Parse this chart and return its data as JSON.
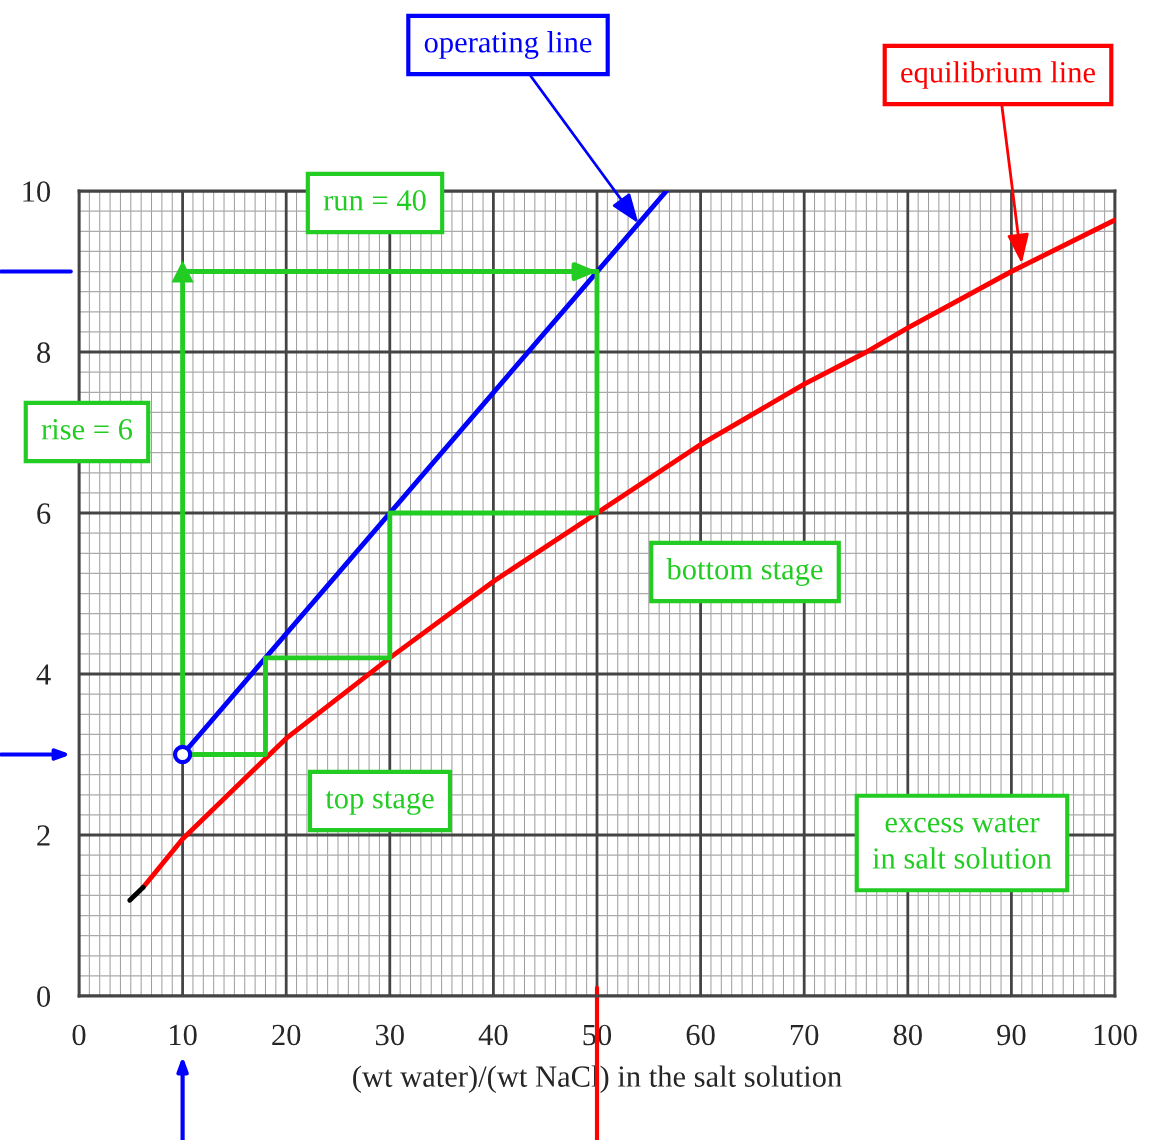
{
  "chart_data": {
    "type": "line",
    "xlabel": "(wt water)/(wt NaCl) in the salt solution",
    "xlim": [
      0,
      100
    ],
    "xticks": [
      0,
      10,
      20,
      30,
      40,
      50,
      60,
      70,
      80,
      90,
      100
    ],
    "ylim": [
      0,
      10
    ],
    "yticks": [
      0,
      2,
      4,
      6,
      8,
      10
    ],
    "grid": true,
    "legend": false,
    "series": [
      {
        "color": "#0000ff",
        "x": [
          10,
          56.7
        ],
        "values": [
          3,
          10
        ]
      },
      {
        "color": "#ff0000",
        "x": [
          6.2,
          10,
          18,
          20,
          30,
          40,
          50,
          60,
          70,
          76,
          80,
          90,
          100
        ],
        "values": [
          1.35,
          1.95,
          2.95,
          3.2,
          4.2,
          5.15,
          6.0,
          6.85,
          7.6,
          8.0,
          8.3,
          9.0,
          9.64
        ]
      },
      {
        "color": "#000000",
        "x": [
          4.9,
          6.2
        ],
        "values": [
          1.19,
          1.35
        ]
      },
      {
        "color": "#22cc22",
        "x": [
          10,
          18,
          18,
          30,
          30,
          50,
          50
        ],
        "values": [
          3,
          3,
          4.2,
          4.2,
          6,
          6,
          9
        ]
      },
      {
        "color": "#22cc22",
        "marker": "triangle",
        "x": [
          10,
          10
        ],
        "values": [
          3,
          9
        ]
      },
      {
        "color": "#22cc22",
        "x": [
          10,
          50
        ],
        "values": [
          9,
          9
        ]
      },
      {
        "type": "scatter",
        "color": "#0000ff",
        "marker": "circle",
        "x": [
          10
        ],
        "values": [
          3
        ]
      }
    ],
    "annotations": [
      {
        "text": "operating line",
        "x": 54,
        "y": 9.6
      },
      {
        "text": "equilibrium line",
        "x": 91,
        "y": 9.1
      },
      "run = 40",
      "rise = 6",
      "bottom stage",
      "top stage",
      "excess water\nin salt solution"
    ]
  }
}
